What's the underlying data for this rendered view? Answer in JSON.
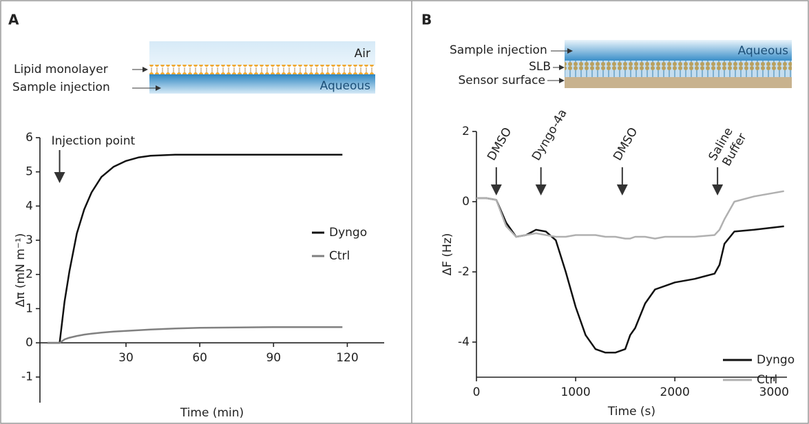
{
  "panels": [
    {
      "label": "A",
      "diagram": {
        "top": "Air",
        "layer": "Lipid monolayer",
        "injection": "Sample injection",
        "bottom": "Aqueous"
      }
    },
    {
      "label": "B",
      "diagram": {
        "injection": "Sample injection",
        "top": "Aqueous",
        "layer": "SLB",
        "surface": "Sensor surface"
      }
    }
  ],
  "chart_data": [
    {
      "type": "line",
      "xlabel": "Time (min)",
      "ylabel": "Δπ (mN m⁻¹)",
      "x": [
        -2,
        0,
        2,
        3,
        5,
        7,
        10,
        13,
        16,
        20,
        25,
        30,
        35,
        40,
        50,
        60,
        75,
        90,
        105,
        118
      ],
      "series": [
        {
          "name": "Dyngo",
          "color": "#111111",
          "values": [
            0,
            0,
            0,
            0,
            1.2,
            2.1,
            3.2,
            3.9,
            4.4,
            4.85,
            5.15,
            5.32,
            5.42,
            5.47,
            5.5,
            5.5,
            5.5,
            5.5,
            5.5,
            5.5
          ]
        },
        {
          "name": "Ctrl",
          "color": "#808080",
          "values": [
            0,
            0,
            0,
            0,
            0.1,
            0.15,
            0.2,
            0.24,
            0.27,
            0.3,
            0.33,
            0.35,
            0.37,
            0.39,
            0.42,
            0.44,
            0.45,
            0.46,
            0.46,
            0.46
          ]
        }
      ],
      "xlim": [
        -5,
        135
      ],
      "ylim": [
        -1.75,
        6
      ],
      "xticks": [
        30,
        60,
        90,
        120
      ],
      "yticks": [
        -1,
        0,
        1,
        2,
        3,
        4,
        5,
        6
      ],
      "legend": "right",
      "annotations": [
        {
          "lines": [
            "Injection point"
          ],
          "x": 3
        }
      ]
    },
    {
      "type": "line",
      "xlabel": "Time (s)",
      "ylabel": "ΔF (Hz)",
      "x": [
        0,
        100,
        200,
        300,
        400,
        500,
        600,
        700,
        800,
        900,
        1000,
        1100,
        1200,
        1300,
        1400,
        1500,
        1550,
        1600,
        1700,
        1800,
        1900,
        2000,
        2200,
        2400,
        2450,
        2500,
        2600,
        2800,
        3100
      ],
      "series": [
        {
          "name": "Dyngo",
          "color": "#111111",
          "values": [
            0.1,
            0.1,
            0.05,
            -0.6,
            -1.0,
            -0.95,
            -0.8,
            -0.85,
            -1.1,
            -2.0,
            -3.0,
            -3.8,
            -4.2,
            -4.3,
            -4.3,
            -4.2,
            -3.8,
            -3.6,
            -2.9,
            -2.5,
            -2.4,
            -2.3,
            -2.2,
            -2.05,
            -1.8,
            -1.2,
            -0.85,
            -0.8,
            -0.7
          ]
        },
        {
          "name": "Ctrl",
          "color": "#b0b0b0",
          "values": [
            0.1,
            0.1,
            0.05,
            -0.7,
            -1.0,
            -0.95,
            -0.9,
            -0.95,
            -1.0,
            -1.0,
            -0.95,
            -0.95,
            -0.95,
            -1.0,
            -1.0,
            -1.05,
            -1.05,
            -1.0,
            -1.0,
            -1.05,
            -1.0,
            -1.0,
            -1.0,
            -0.95,
            -0.8,
            -0.5,
            0.0,
            0.15,
            0.3
          ]
        }
      ],
      "xlim": [
        0,
        3130
      ],
      "ylim": [
        -5,
        2
      ],
      "xticks": [
        0,
        1000,
        2000,
        3000
      ],
      "yticks": [
        -4,
        -2,
        0,
        2
      ],
      "legend": "lower right",
      "annotations": [
        {
          "lines": [
            "DMSO"
          ],
          "x": 200
        },
        {
          "lines": [
            "Dyngo-4a"
          ],
          "x": 650
        },
        {
          "lines": [
            "DMSO"
          ],
          "x": 1470
        },
        {
          "lines": [
            "Saline",
            "Buffer"
          ],
          "x": 2430
        }
      ]
    }
  ]
}
